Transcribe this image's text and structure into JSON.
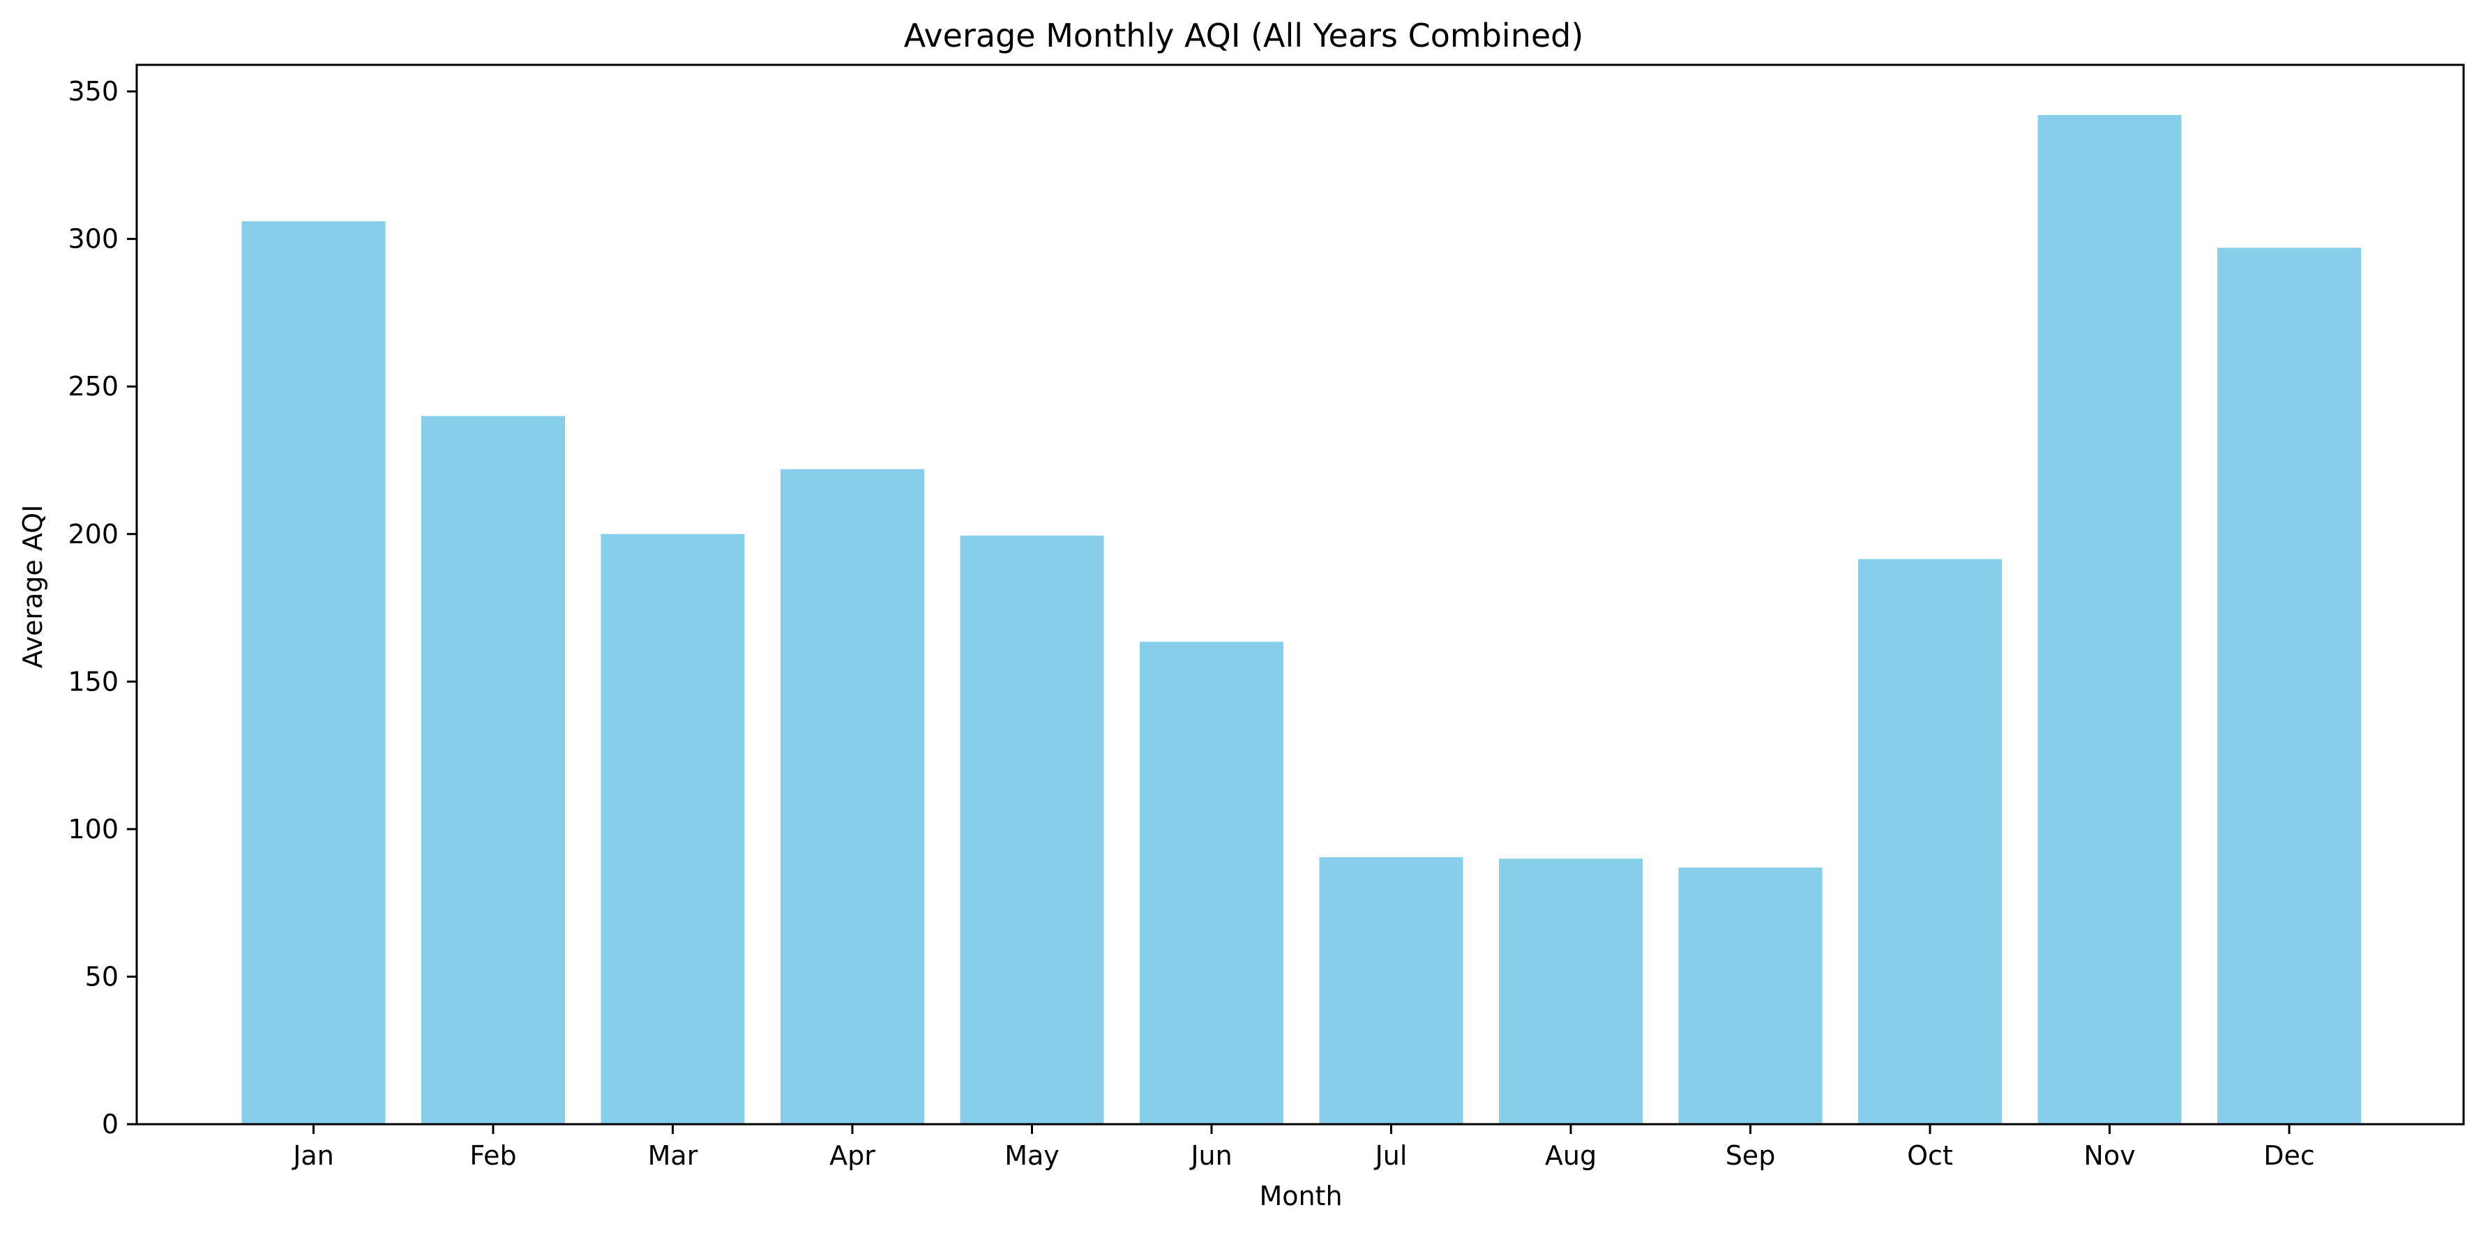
{
  "chart_data": {
    "type": "bar",
    "title": "Average Monthly AQI (All Years Combined)",
    "xlabel": "Month",
    "ylabel": "Average AQI",
    "categories": [
      "Jan",
      "Feb",
      "Mar",
      "Apr",
      "May",
      "Jun",
      "Jul",
      "Aug",
      "Sep",
      "Oct",
      "Nov",
      "Dec"
    ],
    "values": [
      306,
      240,
      200,
      222,
      199.5,
      163.5,
      90.5,
      90,
      87,
      191.5,
      342,
      297
    ],
    "ylim": [
      0,
      359
    ],
    "yticks": [
      0,
      50,
      100,
      150,
      200,
      250,
      300,
      350
    ],
    "bar_color": "#87ceeb",
    "grid": false,
    "legend": "none"
  }
}
